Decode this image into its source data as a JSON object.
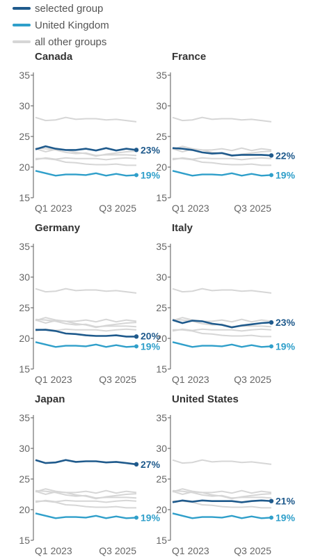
{
  "legend": {
    "items": [
      {
        "label": "selected group",
        "color": "#1f5a8c"
      },
      {
        "label": "United Kingdom",
        "color": "#2f9fca"
      },
      {
        "label": "all other groups",
        "color": "#d6d6d6"
      }
    ]
  },
  "chart_data": {
    "type": "line",
    "ylim": [
      15,
      35
    ],
    "yticks": [
      15,
      20,
      25,
      30,
      35
    ],
    "xtick_labels": [
      "Q1 2023",
      "Q3 2025"
    ],
    "x": [
      "Q1 2023",
      "Q2 2023",
      "Q3 2023",
      "Q4 2023",
      "Q1 2024",
      "Q2 2024",
      "Q3 2024",
      "Q4 2024",
      "Q1 2025",
      "Q2 2025",
      "Q3 2025"
    ],
    "uk": {
      "name": "United Kingdom",
      "values": [
        19.4,
        19.0,
        18.6,
        18.8,
        18.8,
        18.7,
        19.0,
        18.6,
        18.9,
        18.6,
        18.7
      ],
      "end_label": "19%"
    },
    "groups": {
      "Canada": {
        "values": [
          22.9,
          23.4,
          23.0,
          22.8,
          22.8,
          23.0,
          22.7,
          23.1,
          22.7,
          23.0,
          22.8
        ],
        "end_label": "23%"
      },
      "France": {
        "values": [
          23.1,
          23.0,
          22.8,
          22.4,
          22.2,
          22.3,
          21.9,
          22.0,
          22.0,
          22.0,
          21.9
        ],
        "end_label": "22%"
      },
      "Germany": {
        "values": [
          21.4,
          21.4,
          21.2,
          20.8,
          20.7,
          20.5,
          20.4,
          20.4,
          20.5,
          20.3,
          20.3
        ],
        "end_label": "20%"
      },
      "Italy": {
        "values": [
          23.0,
          22.5,
          22.9,
          22.8,
          22.4,
          22.2,
          21.8,
          22.1,
          22.3,
          22.5,
          22.6
        ],
        "end_label": "23%"
      },
      "Japan": {
        "values": [
          28.1,
          27.6,
          27.7,
          28.1,
          27.8,
          27.9,
          27.9,
          27.7,
          27.8,
          27.6,
          27.4
        ],
        "end_label": "27%"
      },
      "United States": {
        "values": [
          21.2,
          21.5,
          21.3,
          21.5,
          21.4,
          21.4,
          21.4,
          21.2,
          21.4,
          21.5,
          21.4
        ],
        "end_label": "21%"
      }
    },
    "panels": [
      {
        "title": "Canada",
        "group": "Canada"
      },
      {
        "title": "France",
        "group": "France"
      },
      {
        "title": "Germany",
        "group": "Germany"
      },
      {
        "title": "Italy",
        "group": "Italy"
      },
      {
        "title": "Japan",
        "group": "Japan"
      },
      {
        "title": "United States",
        "group": "United States"
      }
    ],
    "colors": {
      "selected": "#1f5a8c",
      "uk": "#2f9fca",
      "others": "#d6d6d6",
      "axis": "#555555",
      "title": "#333333",
      "grid_text": "#666666"
    }
  }
}
